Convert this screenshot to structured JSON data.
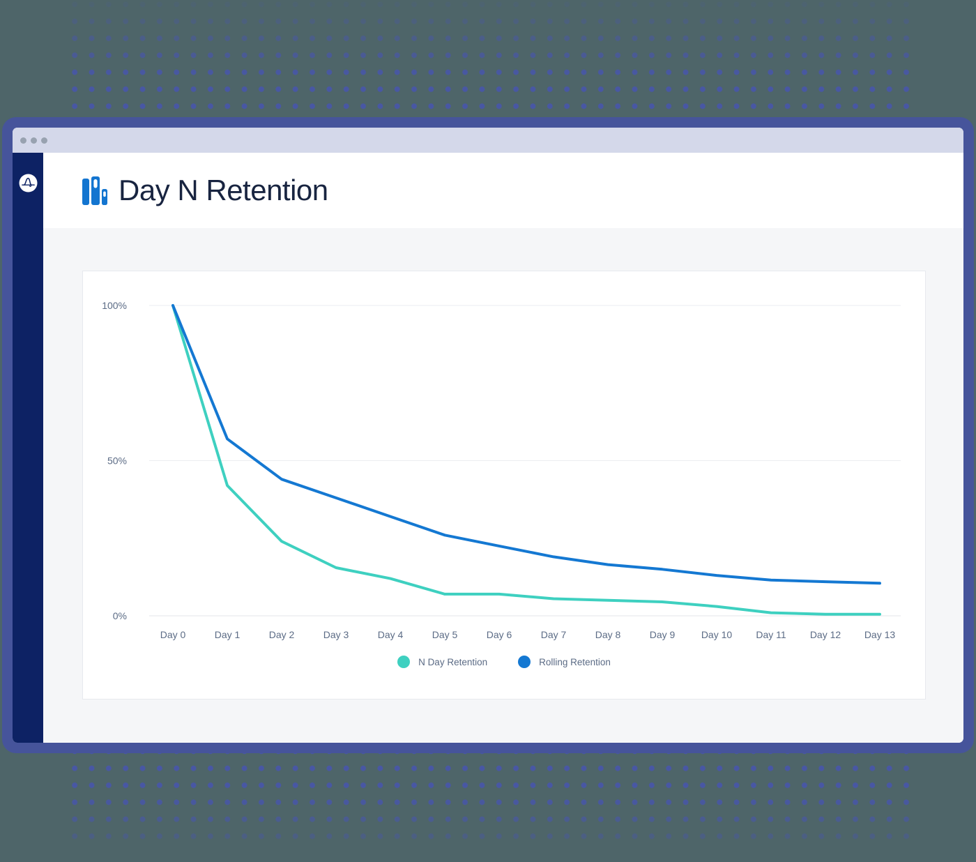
{
  "window": {
    "controls": [
      "close",
      "minimize",
      "maximize"
    ],
    "sidebar": {
      "logo": "amplitude-logo"
    }
  },
  "header": {
    "title": "Day N Retention",
    "icon": "bar-chart-icon"
  },
  "colors": {
    "background": "#4E6569",
    "backdrop_dots": "#4857A4",
    "window_frame": "#46549B",
    "titlebar": "#D4D8EA",
    "sidebar": "#0D2264",
    "accent_blue": "#1375D0",
    "series_teal": "#3ED0C0",
    "series_blue": "#1478D2"
  },
  "chart_data": {
    "type": "line",
    "title": "Day N Retention",
    "xlabel": "",
    "ylabel": "",
    "ylim": [
      0,
      100
    ],
    "grid": true,
    "legend_position": "bottom",
    "categories": [
      "Day 0",
      "Day 1",
      "Day 2",
      "Day 3",
      "Day 4",
      "Day 5",
      "Day 6",
      "Day 7",
      "Day 8",
      "Day 9",
      "Day 10",
      "Day 11",
      "Day 12",
      "Day 13"
    ],
    "y_ticks": [
      {
        "label": "0%",
        "value": 0
      },
      {
        "label": "50%",
        "value": 50
      },
      {
        "label": "100%",
        "value": 100
      }
    ],
    "series": [
      {
        "name": "N Day Retention",
        "color": "#3ED0C0",
        "values": [
          100,
          42,
          24,
          15.5,
          12,
          7,
          7,
          5.5,
          5,
          4.5,
          3,
          1,
          0.5,
          0.5
        ]
      },
      {
        "name": "Rolling Retention",
        "color": "#1478D2",
        "values": [
          100,
          57,
          44,
          38,
          32,
          26,
          22.5,
          19,
          16.5,
          15,
          13,
          11.5,
          11,
          10.5
        ]
      }
    ]
  }
}
